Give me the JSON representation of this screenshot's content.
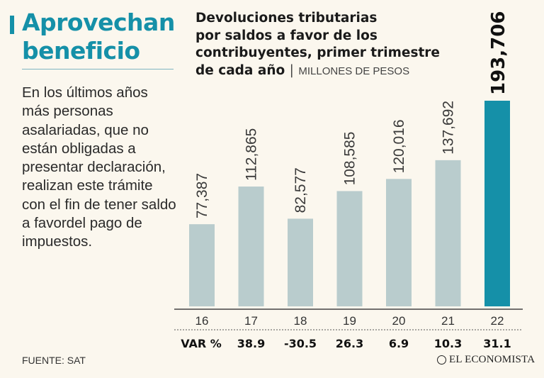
{
  "headline": {
    "line1": "Aprovechan",
    "line2": "beneficio"
  },
  "blurb": "En los últimos años más personas asalariadas, que no están obligadas a presentar declaración, realizan este trámite con el fin de tener saldo a favordel pago de impuestos.",
  "chart_title": {
    "line1": "Devoluciones tributarias",
    "line2": "por saldos a favor de los",
    "line3": "contribuyentes, primer trimestre",
    "line4": "de cada año",
    "separator": "|",
    "unit": "MILLONES DE PESOS"
  },
  "colors": {
    "accent": "#1590a8",
    "bar": "#b9cccd",
    "bar_highlight": "#1590a8",
    "background": "#fbf7ee"
  },
  "chart_data": {
    "type": "bar",
    "title": "Devoluciones tributarias por saldos a favor de los contribuyentes, primer trimestre de cada año",
    "ylabel": "Millones de pesos",
    "categories": [
      "16",
      "17",
      "18",
      "19",
      "20",
      "21",
      "22"
    ],
    "values": [
      77387,
      112865,
      82577,
      108585,
      120016,
      137692,
      193706
    ],
    "value_labels": [
      "77,387",
      "112,865",
      "82,577",
      "108,585",
      "120,016",
      "137,692",
      "193,706"
    ],
    "highlight_index": 6,
    "ylim": [
      0,
      193706
    ],
    "var_label": "VAR %",
    "variation": [
      "",
      "38.9",
      "-30.5",
      "26.3",
      "6.9",
      "10.3",
      "31.1"
    ]
  },
  "footer": {
    "source": "FUENTE: SAT",
    "brand": "EL ECONOMISTA"
  }
}
